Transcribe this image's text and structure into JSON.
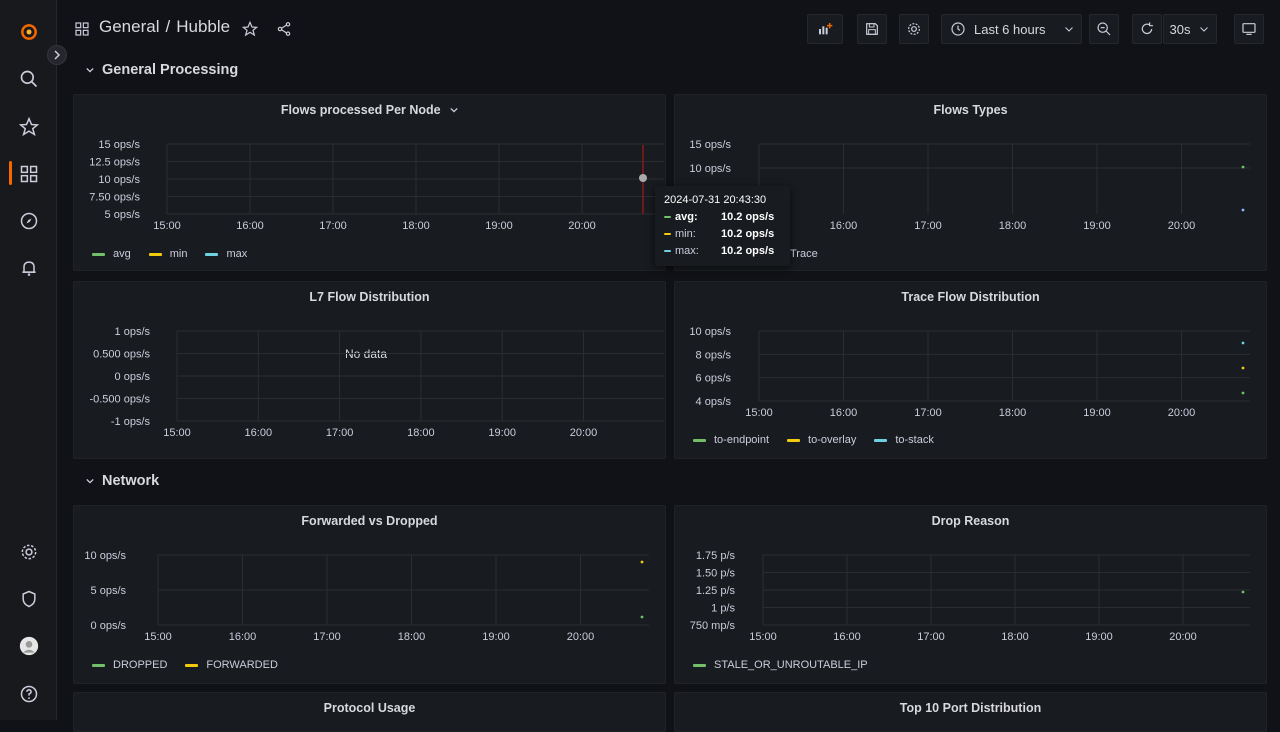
{
  "breadcrumb": {
    "folder": "General",
    "separator": "/",
    "dashboard": "Hubble"
  },
  "toolbar": {
    "time_range": "Last 6 hours",
    "refresh_interval": "30s"
  },
  "colors": {
    "green": "#73bf69",
    "yellow": "#f2cc0c",
    "blue": "#8ab8ff",
    "cyan": "#6ed0e0",
    "accent": "#f46800"
  },
  "rows": [
    {
      "title": "General Processing"
    },
    {
      "title": "Network"
    }
  ],
  "panels": {
    "flows_per_node": {
      "title": "Flows processed Per Node",
      "legend": [
        "avg",
        "min",
        "max"
      ],
      "chart_data": {
        "type": "line",
        "x_ticks": [
          "15:00",
          "16:00",
          "17:00",
          "18:00",
          "19:00",
          "20:00"
        ],
        "y_ticks": [
          "15 ops/s",
          "12.5 ops/s",
          "10 ops/s",
          "7.50 ops/s",
          "5 ops/s"
        ],
        "ylim": [
          5,
          15
        ],
        "series": [
          {
            "name": "avg",
            "values": [
              10.2
            ]
          },
          {
            "name": "min",
            "values": [
              10.2
            ]
          },
          {
            "name": "max",
            "values": [
              10.2
            ]
          }
        ]
      }
    },
    "flows_types": {
      "title": "Flows Types",
      "legend": [
        "Trace"
      ],
      "chart_data": {
        "type": "line",
        "x_ticks": [
          "15:00",
          "16:00",
          "17:00",
          "18:00",
          "19:00",
          "20:00"
        ],
        "y_ticks": [
          "15 ops/s",
          "10 ops/s"
        ],
        "ylim": [
          5,
          15
        ]
      }
    },
    "l7_flow": {
      "title": "L7 Flow Distribution",
      "no_data": "No data",
      "chart_data": {
        "type": "line",
        "x_ticks": [
          "15:00",
          "16:00",
          "17:00",
          "18:00",
          "19:00",
          "20:00"
        ],
        "y_ticks": [
          "1 ops/s",
          "0.500 ops/s",
          "0 ops/s",
          "-0.500 ops/s",
          "-1 ops/s"
        ],
        "ylim": [
          -1,
          1
        ]
      }
    },
    "trace_flow": {
      "title": "Trace Flow Distribution",
      "legend": [
        "to-endpoint",
        "to-overlay",
        "to-stack"
      ],
      "chart_data": {
        "type": "line",
        "x_ticks": [
          "15:00",
          "16:00",
          "17:00",
          "18:00",
          "19:00",
          "20:00"
        ],
        "y_ticks": [
          "10 ops/s",
          "8 ops/s",
          "6 ops/s",
          "4 ops/s"
        ],
        "ylim": [
          4,
          10
        ]
      }
    },
    "forwarded_dropped": {
      "title": "Forwarded vs Dropped",
      "legend": [
        "DROPPED",
        "FORWARDED"
      ],
      "chart_data": {
        "type": "line",
        "x_ticks": [
          "15:00",
          "16:00",
          "17:00",
          "18:00",
          "19:00",
          "20:00"
        ],
        "y_ticks": [
          "10 ops/s",
          "5 ops/s",
          "0 ops/s"
        ],
        "ylim": [
          0,
          10
        ]
      }
    },
    "drop_reason": {
      "title": "Drop Reason",
      "legend": [
        "STALE_OR_UNROUTABLE_IP"
      ],
      "chart_data": {
        "type": "line",
        "x_ticks": [
          "15:00",
          "16:00",
          "17:00",
          "18:00",
          "19:00",
          "20:00"
        ],
        "y_ticks": [
          "1.75 p/s",
          "1.50 p/s",
          "1.25 p/s",
          "1 p/s",
          "750 mp/s"
        ],
        "ylim": [
          0.75,
          1.75
        ]
      }
    },
    "protocol_usage": {
      "title": "Protocol Usage"
    },
    "top10_port": {
      "title": "Top 10 Port Distribution"
    }
  },
  "tooltip": {
    "timestamp": "2024-07-31 20:43:30",
    "rows": [
      {
        "label": "avg:",
        "value": "10.2 ops/s"
      },
      {
        "label": "min:",
        "value": "10.2 ops/s"
      },
      {
        "label": "max:",
        "value": "10.2 ops/s"
      }
    ]
  }
}
